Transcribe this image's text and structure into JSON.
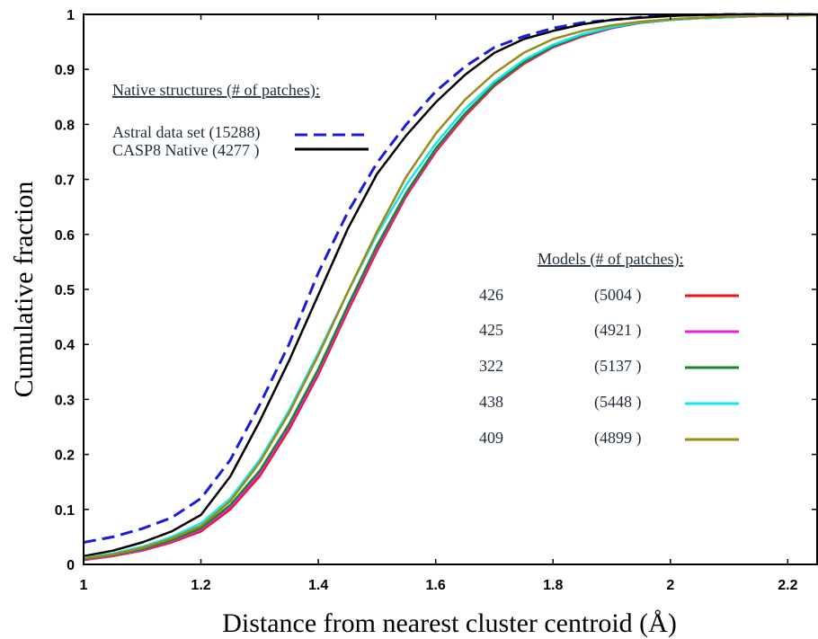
{
  "chart_data": {
    "type": "line",
    "xlabel": "Distance from nearest cluster centroid (Å)",
    "ylabel": "Cumulative fraction",
    "xlim": [
      1.0,
      2.25
    ],
    "ylim": [
      0,
      1
    ],
    "x_ticks": [
      "1",
      "1.2",
      "1.4",
      "1.6",
      "1.8",
      "2",
      "2.2"
    ],
    "y_ticks": [
      "0",
      "0.1",
      "0.2",
      "0.3",
      "0.4",
      "0.5",
      "0.6",
      "0.7",
      "0.8",
      "0.9",
      "1"
    ],
    "grid": false,
    "legends": {
      "native": {
        "heading": "Native structures (# of patches):",
        "entries": [
          {
            "label": "Astral data set (15288)",
            "series": 0
          },
          {
            "label": "CASP8 Native (4277 )",
            "series": 1
          }
        ]
      },
      "models": {
        "heading": "Models (# of patches):",
        "entries": [
          {
            "id": "426",
            "count": "(5004 )",
            "series": 2
          },
          {
            "id": "425",
            "count": "(4921 )",
            "series": 3
          },
          {
            "id": "322",
            "count": "(5137 )",
            "series": 4
          },
          {
            "id": "438",
            "count": "(5448 )",
            "series": 5
          },
          {
            "id": "409",
            "count": "(4899 )",
            "series": 6
          }
        ]
      }
    },
    "series": [
      {
        "color": "#1a1adc",
        "dash": true,
        "x": [
          1.0,
          1.05,
          1.1,
          1.15,
          1.2,
          1.25,
          1.3,
          1.35,
          1.4,
          1.45,
          1.5,
          1.55,
          1.6,
          1.65,
          1.7,
          1.75,
          1.8,
          1.85,
          1.9,
          1.95,
          2.0,
          2.05,
          2.1,
          2.15,
          2.2,
          2.25
        ],
        "y": [
          0.04,
          0.05,
          0.065,
          0.085,
          0.12,
          0.19,
          0.29,
          0.4,
          0.53,
          0.64,
          0.73,
          0.8,
          0.86,
          0.905,
          0.94,
          0.96,
          0.975,
          0.985,
          0.99,
          0.995,
          0.998,
          0.999,
          1.0,
          1.0,
          1.0,
          1.0
        ]
      },
      {
        "color": "#000000",
        "dash": false,
        "x": [
          1.0,
          1.05,
          1.1,
          1.15,
          1.2,
          1.25,
          1.3,
          1.35,
          1.4,
          1.45,
          1.5,
          1.55,
          1.6,
          1.65,
          1.7,
          1.75,
          1.8,
          1.85,
          1.9,
          1.95,
          2.0,
          2.05,
          2.1,
          2.15,
          2.2,
          2.25
        ],
        "y": [
          0.015,
          0.025,
          0.04,
          0.06,
          0.09,
          0.16,
          0.26,
          0.37,
          0.49,
          0.61,
          0.71,
          0.78,
          0.84,
          0.89,
          0.93,
          0.955,
          0.97,
          0.982,
          0.99,
          0.994,
          0.997,
          0.999,
          1.0,
          1.0,
          1.0,
          1.0
        ]
      },
      {
        "color": "#ee1111",
        "dash": false,
        "x": [
          1.0,
          1.05,
          1.1,
          1.15,
          1.2,
          1.25,
          1.3,
          1.35,
          1.4,
          1.45,
          1.5,
          1.55,
          1.6,
          1.65,
          1.7,
          1.75,
          1.8,
          1.85,
          1.9,
          1.95,
          2.0,
          2.05,
          2.1,
          2.15,
          2.2,
          2.25
        ],
        "y": [
          0.008,
          0.015,
          0.025,
          0.04,
          0.06,
          0.1,
          0.16,
          0.245,
          0.345,
          0.46,
          0.57,
          0.67,
          0.75,
          0.815,
          0.87,
          0.91,
          0.94,
          0.96,
          0.975,
          0.985,
          0.99,
          0.993,
          0.995,
          0.997,
          0.998,
          0.999
        ]
      },
      {
        "color": "#e81ee8",
        "dash": false,
        "x": [
          1.0,
          1.05,
          1.1,
          1.15,
          1.2,
          1.25,
          1.3,
          1.35,
          1.4,
          1.45,
          1.5,
          1.55,
          1.6,
          1.65,
          1.7,
          1.75,
          1.8,
          1.85,
          1.9,
          1.95,
          2.0,
          2.05,
          2.1,
          2.15,
          2.2,
          2.25
        ],
        "y": [
          0.009,
          0.016,
          0.026,
          0.042,
          0.063,
          0.104,
          0.165,
          0.25,
          0.35,
          0.465,
          0.575,
          0.673,
          0.753,
          0.818,
          0.872,
          0.912,
          0.941,
          0.961,
          0.975,
          0.985,
          0.99,
          0.993,
          0.995,
          0.997,
          0.998,
          0.999
        ]
      },
      {
        "color": "#138a2a",
        "dash": false,
        "x": [
          1.0,
          1.05,
          1.1,
          1.15,
          1.2,
          1.25,
          1.3,
          1.35,
          1.4,
          1.45,
          1.5,
          1.55,
          1.6,
          1.65,
          1.7,
          1.75,
          1.8,
          1.85,
          1.9,
          1.95,
          2.0,
          2.05,
          2.1,
          2.15,
          2.2,
          2.25
        ],
        "y": [
          0.01,
          0.017,
          0.028,
          0.044,
          0.066,
          0.108,
          0.17,
          0.255,
          0.355,
          0.47,
          0.58,
          0.676,
          0.756,
          0.82,
          0.873,
          0.913,
          0.942,
          0.962,
          0.976,
          0.985,
          0.99,
          0.993,
          0.995,
          0.997,
          0.998,
          0.999
        ]
      },
      {
        "color": "#12e6ee",
        "dash": false,
        "x": [
          1.0,
          1.05,
          1.1,
          1.15,
          1.2,
          1.25,
          1.3,
          1.35,
          1.4,
          1.45,
          1.5,
          1.55,
          1.6,
          1.65,
          1.7,
          1.75,
          1.8,
          1.85,
          1.9,
          1.95,
          2.0,
          2.05,
          2.1,
          2.15,
          2.2,
          2.25
        ],
        "y": [
          0.012,
          0.02,
          0.032,
          0.05,
          0.075,
          0.12,
          0.19,
          0.28,
          0.385,
          0.495,
          0.6,
          0.69,
          0.765,
          0.828,
          0.878,
          0.917,
          0.945,
          0.964,
          0.977,
          0.986,
          0.99,
          0.993,
          0.995,
          0.997,
          0.998,
          0.999
        ]
      },
      {
        "color": "#9a8a17",
        "dash": false,
        "x": [
          1.0,
          1.05,
          1.1,
          1.15,
          1.2,
          1.25,
          1.3,
          1.35,
          1.4,
          1.45,
          1.5,
          1.55,
          1.6,
          1.65,
          1.7,
          1.75,
          1.8,
          1.85,
          1.9,
          1.95,
          2.0,
          2.05,
          2.1,
          2.15,
          2.2,
          2.25
        ],
        "y": [
          0.011,
          0.018,
          0.03,
          0.047,
          0.07,
          0.115,
          0.185,
          0.275,
          0.38,
          0.495,
          0.605,
          0.705,
          0.783,
          0.845,
          0.893,
          0.93,
          0.955,
          0.97,
          0.98,
          0.987,
          0.991,
          0.994,
          0.996,
          0.997,
          0.998,
          0.999
        ]
      }
    ]
  }
}
